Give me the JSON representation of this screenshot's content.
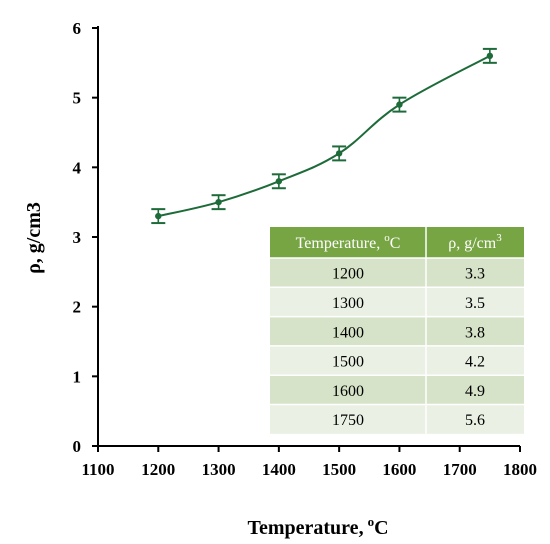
{
  "chart_data": {
    "type": "line",
    "xlabel": "Temperature,",
    "xlabel_unit": "C",
    "xlabel_sup": "o",
    "ylabel": "ρ, g/cm3",
    "xlim": [
      1100,
      1800
    ],
    "ylim": [
      0,
      6
    ],
    "xticks": [
      1100,
      1200,
      1300,
      1400,
      1500,
      1600,
      1700,
      1800
    ],
    "yticks": [
      0,
      1,
      2,
      3,
      4,
      5,
      6
    ],
    "grid": false,
    "series": [
      {
        "x": [
          1200,
          1300,
          1400,
          1500,
          1600,
          1750
        ],
        "y": [
          3.3,
          3.5,
          3.8,
          4.2,
          4.9,
          5.6
        ],
        "error": [
          0.1,
          0.1,
          0.1,
          0.1,
          0.1,
          0.1
        ],
        "color": "#1e6b3a",
        "smooth": true
      }
    ],
    "table": {
      "header_color": "#77a544",
      "row_color_a": "#d6e3c8",
      "row_color_b": "#eaf0e3",
      "headers": [
        "Temperature, ",
        "ρ, g/cm"
      ],
      "header_sup": [
        "o",
        "3"
      ],
      "header_suffix": [
        "C",
        ""
      ],
      "rows": [
        [
          "1200",
          "3.3"
        ],
        [
          "1300",
          "3.5"
        ],
        [
          "1400",
          "3.8"
        ],
        [
          "1500",
          "4.2"
        ],
        [
          "1600",
          "4.9"
        ],
        [
          "1750",
          "5.6"
        ]
      ]
    }
  }
}
